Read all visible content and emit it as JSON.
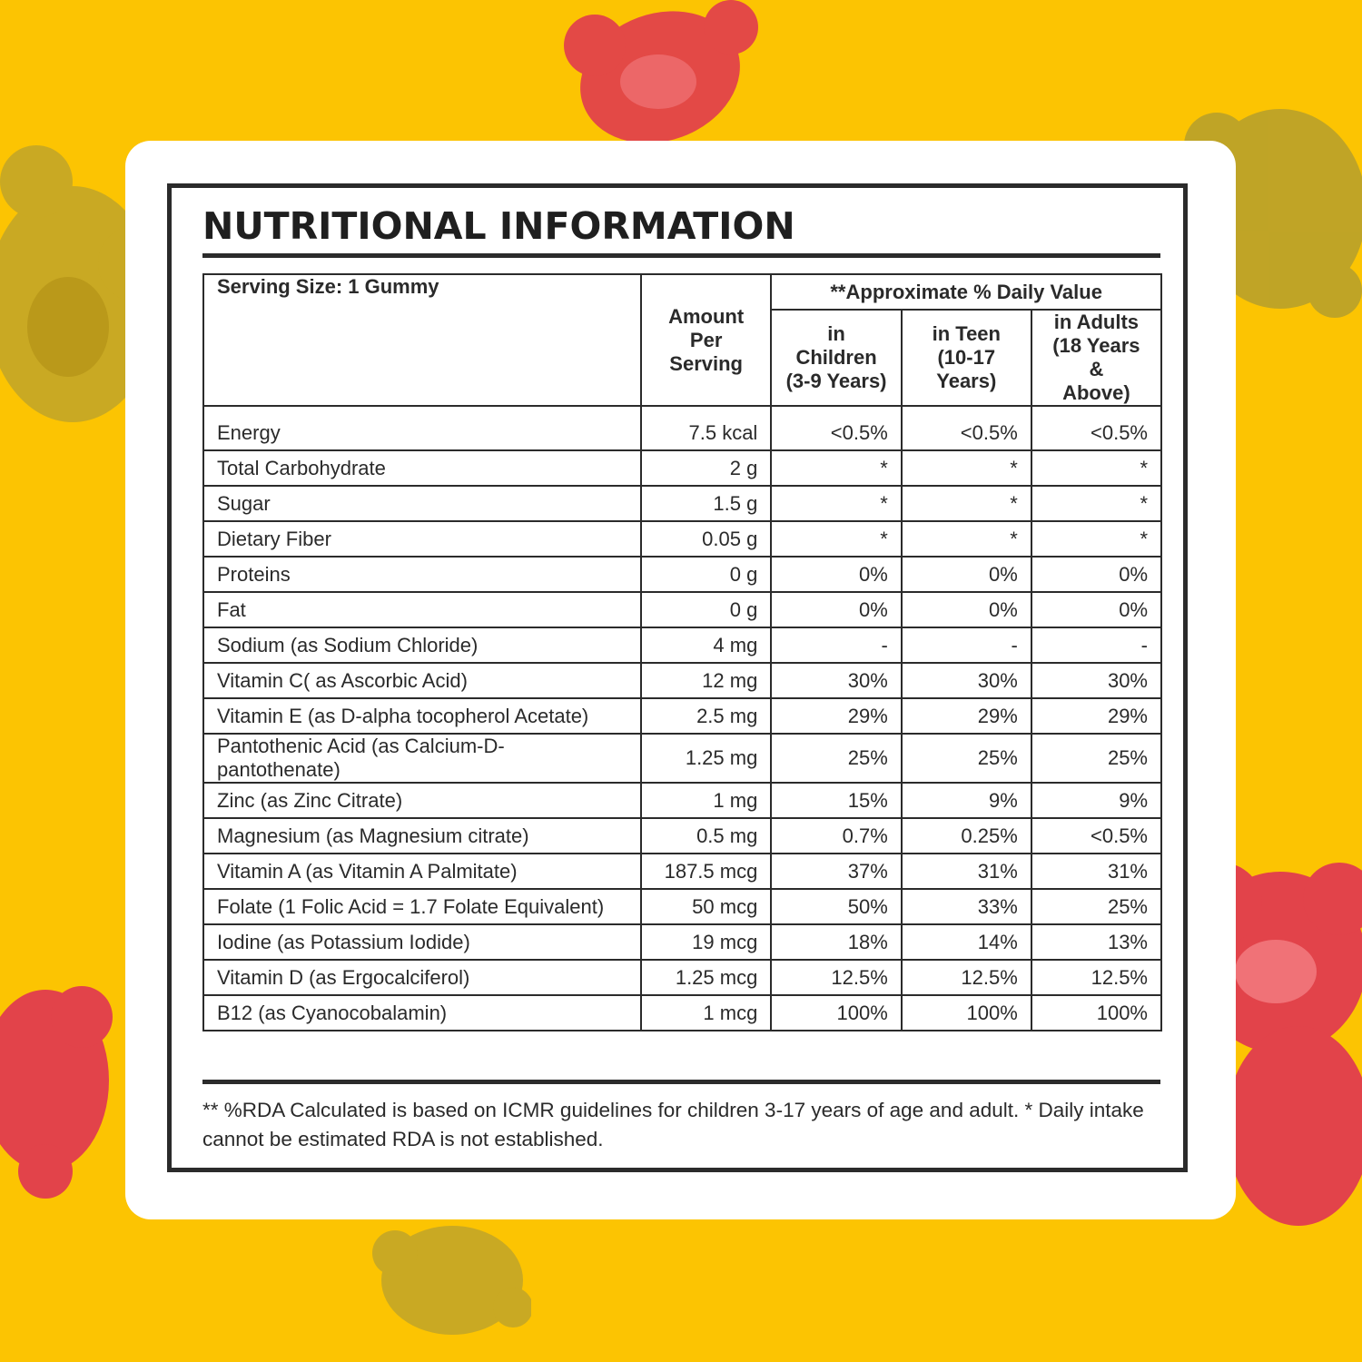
{
  "colors": {
    "background": "#fcc402",
    "card": "#ffffff",
    "ink": "#2b2b2b",
    "bear_red": "#e2434a",
    "bear_gold": "#c9a923"
  },
  "decorations": {
    "bears": [
      "red-gummy-bear",
      "gold-gummy-bear",
      "gold-gummy-bear",
      "red-gummy-bear",
      "red-gummy-bear",
      "gold-gummy-bear"
    ]
  },
  "title": "NUTRITIONAL INFORMATION",
  "table": {
    "serving_size": "Serving Size: 1 Gummy",
    "amount_header": [
      "Amount",
      "Per Serving"
    ],
    "dv_header": "**Approximate % Daily Value",
    "groups": [
      [
        "in Children",
        "(3-9 Years)"
      ],
      [
        "in Teen",
        "(10-17",
        "Years)"
      ],
      [
        "in Adults",
        "(18 Years &",
        "Above)"
      ]
    ],
    "rows": [
      [
        "Energy",
        "7.5 kcal",
        "<0.5%",
        "<0.5%",
        "<0.5%"
      ],
      [
        "Total Carbohydrate",
        "2 g",
        "*",
        "*",
        "*"
      ],
      [
        "Sugar",
        "1.5 g",
        "*",
        "*",
        "*"
      ],
      [
        "Dietary Fiber",
        "0.05 g",
        "*",
        "*",
        "*"
      ],
      [
        "Proteins",
        "0 g",
        "0%",
        "0%",
        "0%"
      ],
      [
        "Fat",
        "0 g",
        "0%",
        "0%",
        "0%"
      ],
      [
        "Sodium (as Sodium Chloride)",
        "4 mg",
        "-",
        "-",
        "-"
      ],
      [
        "Vitamin C( as Ascorbic Acid)",
        "12 mg",
        "30%",
        "30%",
        "30%"
      ],
      [
        "Vitamin E (as D-alpha tocopherol Acetate)",
        "2.5 mg",
        "29%",
        "29%",
        "29%"
      ],
      [
        "Pantothenic Acid (as Calcium-D-pantothenate)",
        "1.25 mg",
        "25%",
        "25%",
        "25%"
      ],
      [
        "Zinc (as Zinc Citrate)",
        "1 mg",
        "15%",
        "9%",
        "9%"
      ],
      [
        "Magnesium (as Magnesium citrate)",
        "0.5 mg",
        "0.7%",
        "0.25%",
        "<0.5%"
      ],
      [
        "Vitamin A (as Vitamin A Palmitate)",
        "187.5 mcg",
        "37%",
        "31%",
        "31%"
      ],
      [
        "Folate (1 Folic Acid = 1.7 Folate Equivalent)",
        "50 mcg",
        "50%",
        "33%",
        "25%"
      ],
      [
        "Iodine (as Potassium Iodide)",
        "19 mcg",
        "18%",
        "14%",
        "13%"
      ],
      [
        "Vitamin D (as Ergocalciferol)",
        "1.25 mcg",
        "12.5%",
        "12.5%",
        "12.5%"
      ],
      [
        "B12 (as Cyanocobalamin)",
        "1 mcg",
        "100%",
        "100%",
        "100%"
      ]
    ]
  },
  "footnote": "** %RDA Calculated is based on ICMR guidelines for children 3-17 years of age and adult. * Daily intake cannot be estimated RDA is not established."
}
